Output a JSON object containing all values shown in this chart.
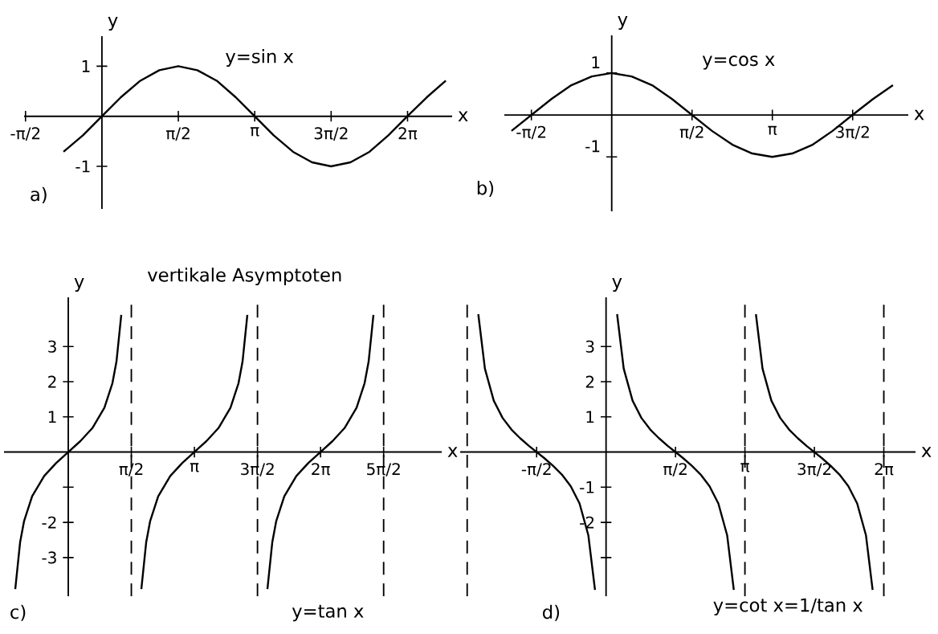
{
  "chart_data": [
    {
      "type": "line",
      "title": "y=sin x",
      "xlabel": "x",
      "ylabel": "y",
      "annotations": [
        "a)"
      ],
      "xlim": [
        -1.6,
        7.2
      ],
      "ylim": [
        -1.85,
        1.6
      ],
      "xticks": [
        {
          "value": -1.5708,
          "label": "-π/2"
        },
        {
          "value": 1.5708,
          "label": "π/2"
        },
        {
          "value": 3.1416,
          "label": "π"
        },
        {
          "value": 4.7124,
          "label": "3π/2"
        },
        {
          "value": 6.2832,
          "label": "2π"
        }
      ],
      "yticks": [
        1,
        -1
      ],
      "series": [
        {
          "color": "#000000",
          "x": [
            -0.79,
            -0.39,
            0,
            0.39,
            0.79,
            1.18,
            1.57,
            1.96,
            2.36,
            2.75,
            3.14,
            3.53,
            3.93,
            4.32,
            4.71,
            5.11,
            5.5,
            5.89,
            6.28,
            6.68,
            7.07
          ],
          "values": [
            -0.71,
            -0.38,
            0,
            0.38,
            0.71,
            0.92,
            1,
            0.92,
            0.71,
            0.38,
            0,
            -0.38,
            -0.71,
            -0.92,
            -1,
            -0.92,
            -0.71,
            -0.38,
            0,
            0.38,
            0.71
          ]
        }
      ]
    },
    {
      "type": "line",
      "title": "y=cos x",
      "xlabel": "x",
      "ylabel": "y",
      "annotations": [
        "b)"
      ],
      "xlim": [
        -2.1,
        5.8
      ],
      "ylim": [
        -2.3,
        1.9
      ],
      "xticks": [
        {
          "value": -1.5708,
          "label": "-π/2"
        },
        {
          "value": 1.5708,
          "label": "π/2"
        },
        {
          "value": 3.1416,
          "label": "π"
        },
        {
          "value": 4.7124,
          "label": "3π/2"
        }
      ],
      "yticks": [
        1,
        -1
      ],
      "series": [
        {
          "color": "#000000",
          "x": [
            -1.96,
            -1.57,
            -1.18,
            -0.79,
            -0.39,
            0,
            0.39,
            0.79,
            1.18,
            1.57,
            1.96,
            2.36,
            2.75,
            3.14,
            3.53,
            3.93,
            4.32,
            4.71,
            5.11,
            5.5
          ],
          "values": [
            -0.38,
            0,
            0.38,
            0.71,
            0.92,
            1,
            0.92,
            0.71,
            0.38,
            0,
            -0.38,
            -0.71,
            -0.92,
            -1,
            -0.92,
            -0.71,
            -0.38,
            0,
            0.38,
            0.71
          ]
        }
      ]
    },
    {
      "type": "line",
      "title": "vertikale Asymptoten",
      "xlabel": "x",
      "ylabel": "y",
      "annotations": [
        "y=tan x",
        "c)"
      ],
      "xlim": [
        -1.6,
        9.3
      ],
      "ylim": [
        -4.1,
        4.4
      ],
      "xticks": [
        {
          "value": 1.5708,
          "label": "π/2"
        },
        {
          "value": 3.1416,
          "label": "π"
        },
        {
          "value": 4.7124,
          "label": "3π/2"
        },
        {
          "value": 6.2832,
          "label": "2π"
        },
        {
          "value": 7.854,
          "label": "5π/2"
        }
      ],
      "yticks": [
        3,
        2,
        1,
        {
          "value": -1,
          "label": null
        },
        -2,
        -3
      ],
      "ref_lines": [
        {
          "axis": "x",
          "value": 1.5708,
          "line_style": "dashed"
        },
        {
          "axis": "x",
          "value": 4.7124,
          "line_style": "dashed"
        },
        {
          "axis": "x",
          "value": 7.854,
          "line_style": "dashed"
        }
      ],
      "series": [
        {
          "color": "#000000",
          "x": [
            -1.32,
            -1.2,
            -1.1,
            -0.9,
            -0.6,
            -0.3,
            0,
            0.3,
            0.6,
            0.9,
            1.1,
            1.2,
            1.32
          ],
          "values": [
            -3.9,
            -2.57,
            -1.96,
            -1.26,
            -0.68,
            -0.31,
            0,
            0.31,
            0.68,
            1.26,
            1.96,
            2.57,
            3.9
          ]
        },
        {
          "color": "#000000",
          "x": [
            1.82,
            1.94,
            2.04,
            2.24,
            2.54,
            2.84,
            3.14,
            3.44,
            3.74,
            4.04,
            4.24,
            4.34,
            4.46
          ],
          "values": [
            -3.9,
            -2.57,
            -1.96,
            -1.26,
            -0.68,
            -0.31,
            0,
            0.31,
            0.68,
            1.26,
            1.96,
            2.57,
            3.9
          ]
        },
        {
          "color": "#000000",
          "x": [
            4.96,
            5.08,
            5.18,
            5.38,
            5.68,
            5.98,
            6.28,
            6.58,
            6.88,
            7.18,
            7.38,
            7.48,
            7.6
          ],
          "values": [
            -3.9,
            -2.57,
            -1.96,
            -1.26,
            -0.68,
            -0.31,
            0,
            0.31,
            0.68,
            1.26,
            1.96,
            2.57,
            3.9
          ]
        }
      ]
    },
    {
      "type": "line",
      "title": "y=cot x=1/tan x",
      "xlabel": "x",
      "ylabel": "y",
      "annotations": [
        "d)"
      ],
      "xlim": [
        -3.3,
        7.0
      ],
      "ylim": [
        -4.1,
        4.4
      ],
      "xticks": [
        {
          "value": -1.5708,
          "label": "-π/2"
        },
        {
          "value": 1.5708,
          "label": "π/2"
        },
        {
          "value": 3.1416,
          "label": "π"
        },
        {
          "value": 4.7124,
          "label": "3π/2"
        },
        {
          "value": 6.2832,
          "label": "2π"
        }
      ],
      "yticks": [
        3,
        2,
        1,
        -1,
        -2,
        {
          "value": -3,
          "label": null
        }
      ],
      "ref_lines": [
        {
          "axis": "x",
          "value": -3.1416,
          "line_style": "dashed"
        },
        {
          "axis": "x",
          "value": 3.1416,
          "line_style": "dashed"
        },
        {
          "axis": "x",
          "value": 6.2832,
          "line_style": "dashed"
        }
      ],
      "series": [
        {
          "color": "#000000",
          "x": [
            -2.89,
            -2.74,
            -2.54,
            -2.34,
            -2.14,
            -1.94,
            -1.74,
            -1.57,
            -1.4,
            -1.2,
            -1.0,
            -0.8,
            -0.6,
            -0.4,
            -0.25
          ],
          "values": [
            3.92,
            2.37,
            1.46,
            0.97,
            0.64,
            0.39,
            0.17,
            0,
            -0.17,
            -0.39,
            -0.64,
            -0.97,
            -1.46,
            -2.37,
            -3.92
          ]
        },
        {
          "color": "#000000",
          "x": [
            0.25,
            0.4,
            0.6,
            0.8,
            1.0,
            1.2,
            1.4,
            1.57,
            1.74,
            1.94,
            2.14,
            2.34,
            2.54,
            2.74,
            2.89
          ],
          "values": [
            3.92,
            2.37,
            1.46,
            0.97,
            0.64,
            0.39,
            0.17,
            0,
            -0.17,
            -0.39,
            -0.64,
            -0.97,
            -1.46,
            -2.37,
            -3.92
          ]
        },
        {
          "color": "#000000",
          "x": [
            3.39,
            3.54,
            3.74,
            3.94,
            4.14,
            4.34,
            4.54,
            4.71,
            4.88,
            5.08,
            5.28,
            5.48,
            5.68,
            5.88,
            6.03
          ],
          "values": [
            3.92,
            2.37,
            1.46,
            0.97,
            0.64,
            0.39,
            0.17,
            0,
            -0.17,
            -0.39,
            -0.64,
            -0.97,
            -1.46,
            -2.37,
            -3.92
          ]
        }
      ]
    }
  ]
}
